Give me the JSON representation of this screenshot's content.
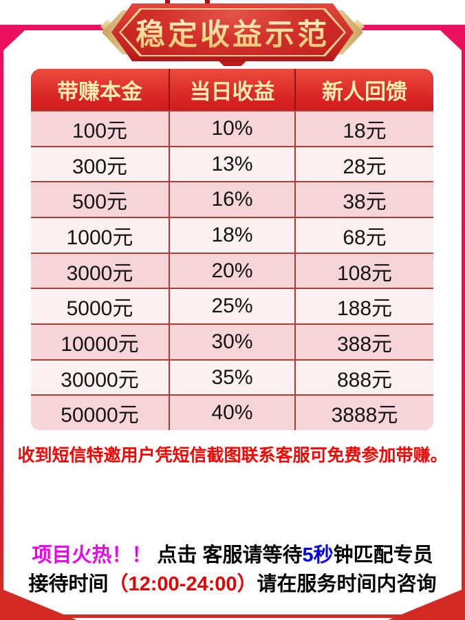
{
  "banner": {
    "title": "稳定收益示范"
  },
  "table": {
    "headers": [
      "带赚本金",
      "当日收益",
      "新人回馈"
    ],
    "rows": [
      [
        "100元",
        "10%",
        "18元"
      ],
      [
        "300元",
        "13%",
        "28元"
      ],
      [
        "500元",
        "16%",
        "38元"
      ],
      [
        "1000元",
        "18%",
        "68元"
      ],
      [
        "3000元",
        "20%",
        "108元"
      ],
      [
        "5000元",
        "25%",
        "188元"
      ],
      [
        "10000元",
        "30%",
        "388元"
      ],
      [
        "30000元",
        "35%",
        "888元"
      ],
      [
        "50000元",
        "40%",
        "3888元"
      ]
    ]
  },
  "notice": "收到短信特邀用户凭短信截图联系客服可免费参加带赚。",
  "footer": {
    "hot": "项目火热！！",
    "mid": " 点击 客服请等待",
    "seconds": "5秒",
    "tail": "钟匹配专员",
    "line2_prefix": "接待时间",
    "line2_time": "（12:00-24:00）",
    "line2_suffix": "请在服务时间内咨询"
  },
  "colors": {
    "frame_pink": "#ec1060",
    "frame_red": "#d42a24",
    "header_red": "#d82023",
    "row_dark": "#f6d5d8",
    "row_light": "#fdf0f1",
    "header_text": "#f9edb4",
    "notice_red": "#fe0000",
    "hot_magenta": "#ee00ee",
    "seconds_blue": "#0000ee",
    "time_red": "#e80000",
    "gold": "#e8c97e"
  }
}
